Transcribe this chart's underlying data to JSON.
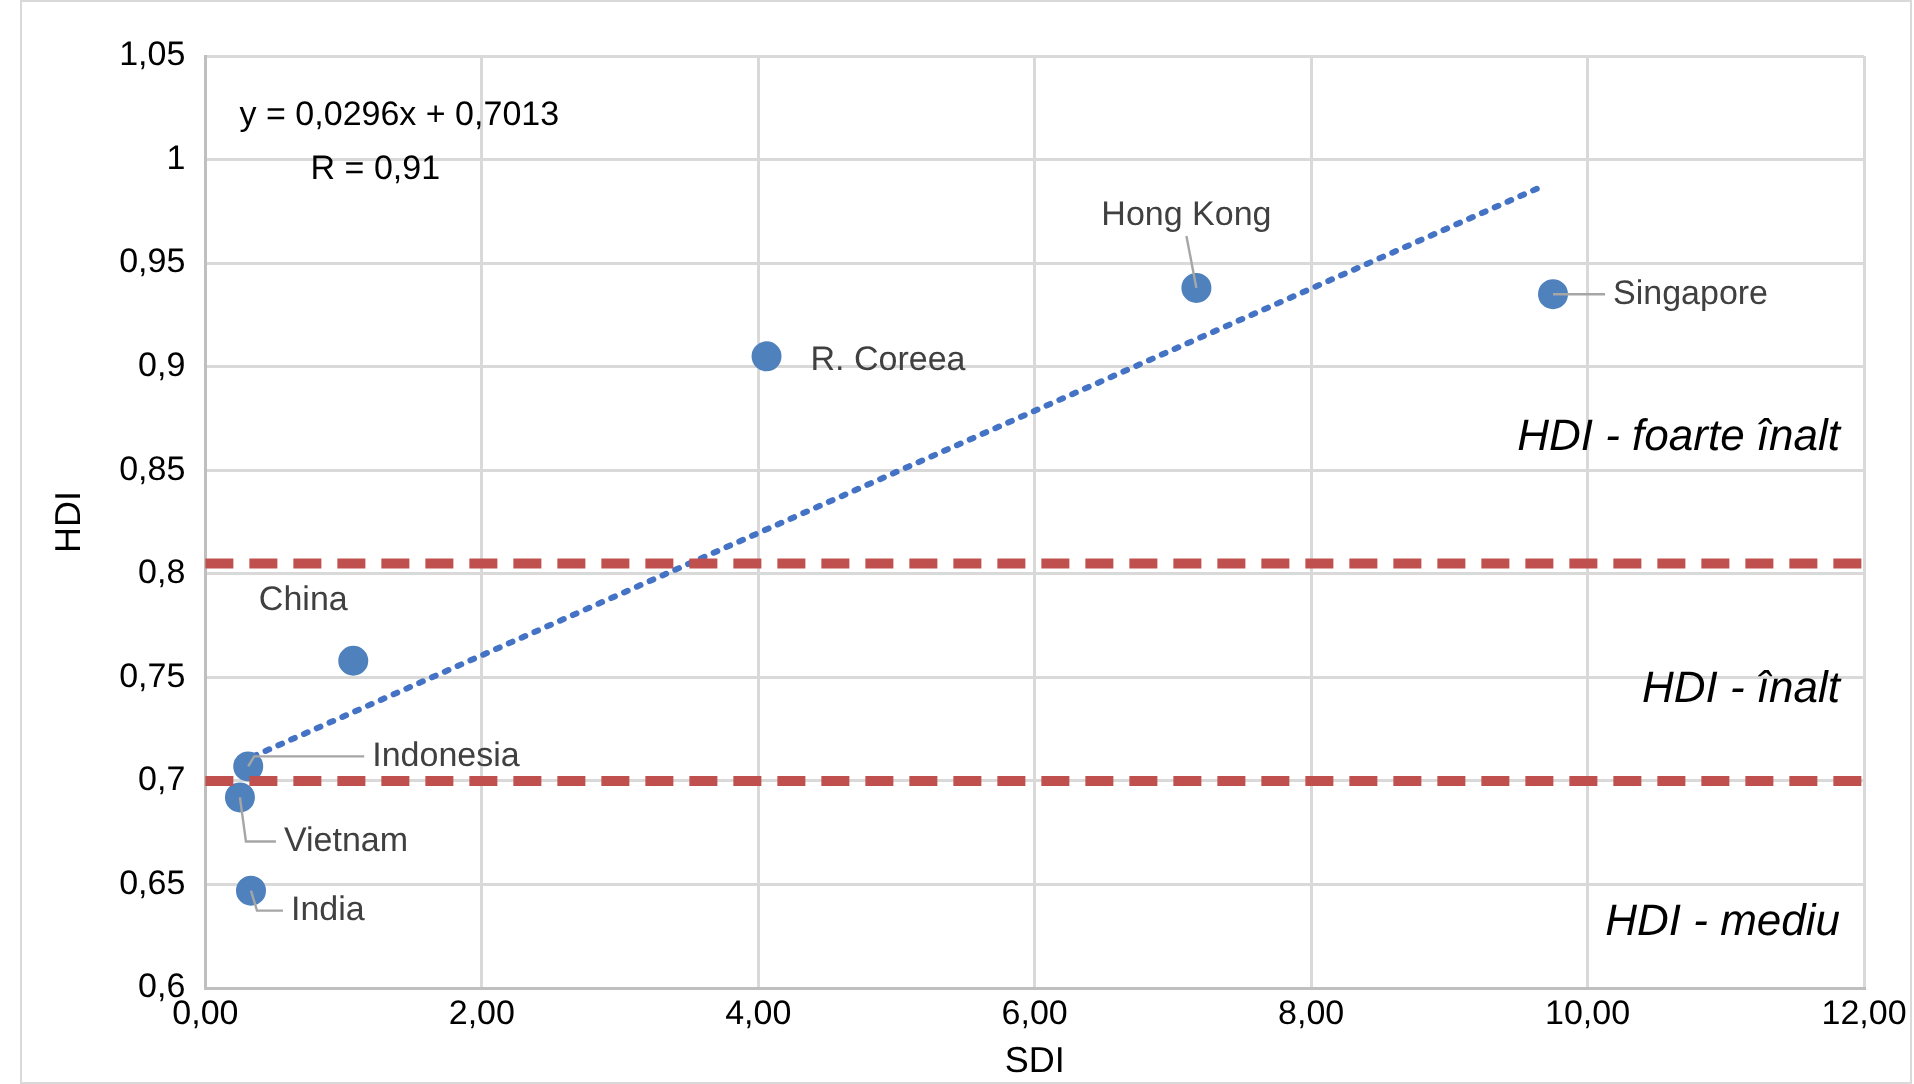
{
  "chart_data": {
    "type": "scatter",
    "xlabel": "SDI",
    "ylabel": "HDI",
    "xlim": [
      0,
      12
    ],
    "xticks": [
      {
        "value": 0,
        "label": "0,00"
      },
      {
        "value": 2,
        "label": "2,00"
      },
      {
        "value": 4,
        "label": "4,00"
      },
      {
        "value": 6,
        "label": "6,00"
      },
      {
        "value": 8,
        "label": "8,00"
      },
      {
        "value": 10,
        "label": "10,00"
      },
      {
        "value": 12,
        "label": "12,00"
      }
    ],
    "ylim": [
      0.6,
      1.05
    ],
    "yticks": [
      {
        "value": 0.6,
        "label": "0,6"
      },
      {
        "value": 0.65,
        "label": "0,65"
      },
      {
        "value": 0.7,
        "label": "0,7"
      },
      {
        "value": 0.75,
        "label": "0,75"
      },
      {
        "value": 0.8,
        "label": "0,8"
      },
      {
        "value": 0.85,
        "label": "0,85"
      },
      {
        "value": 0.9,
        "label": "0,9"
      },
      {
        "value": 0.95,
        "label": "0,95"
      },
      {
        "value": 1,
        "label": "1"
      },
      {
        "value": 1.05,
        "label": "1,05"
      }
    ],
    "grid": true,
    "legend": false,
    "marker": "circle",
    "series": [
      {
        "color": "#4f81bd",
        "x": [
          1.07,
          0.31,
          0.25,
          0.33,
          4.06,
          7.17,
          9.75
        ],
        "values": [
          0.758,
          0.707,
          0.692,
          0.647,
          0.905,
          0.938,
          0.935
        ]
      },
      {
        "type": "line",
        "color": "#4472c4",
        "line_style": "dotted",
        "marker": "none",
        "x": [
          0.25,
          9.67
        ],
        "values": [
          0.709,
          0.987
        ]
      }
    ],
    "ref_lines": [
      {
        "axis": "y",
        "value": 0.805,
        "color": "#c0504d",
        "line_style": "dashed"
      },
      {
        "axis": "y",
        "value": 0.7,
        "color": "#c0504d",
        "line_style": "dashed"
      }
    ],
    "annotations": [
      "y = 0,0296x + 0,7013",
      "R = 0,91",
      {
        "text": "China",
        "x": 1.07,
        "y": 0.758
      },
      {
        "text": "Indonesia",
        "x": 0.31,
        "y": 0.707
      },
      {
        "text": "Vietnam",
        "x": 0.25,
        "y": 0.692
      },
      {
        "text": "India",
        "x": 0.33,
        "y": 0.647
      },
      {
        "text": "R. Coreea",
        "x": 4.06,
        "y": 0.905
      },
      {
        "text": "Hong Kong",
        "x": 7.17,
        "y": 0.938
      },
      {
        "text": "Singapore",
        "x": 9.75,
        "y": 0.935
      },
      "HDI - foarte înalt",
      "HDI - înalt",
      "HDI - mediu"
    ]
  }
}
